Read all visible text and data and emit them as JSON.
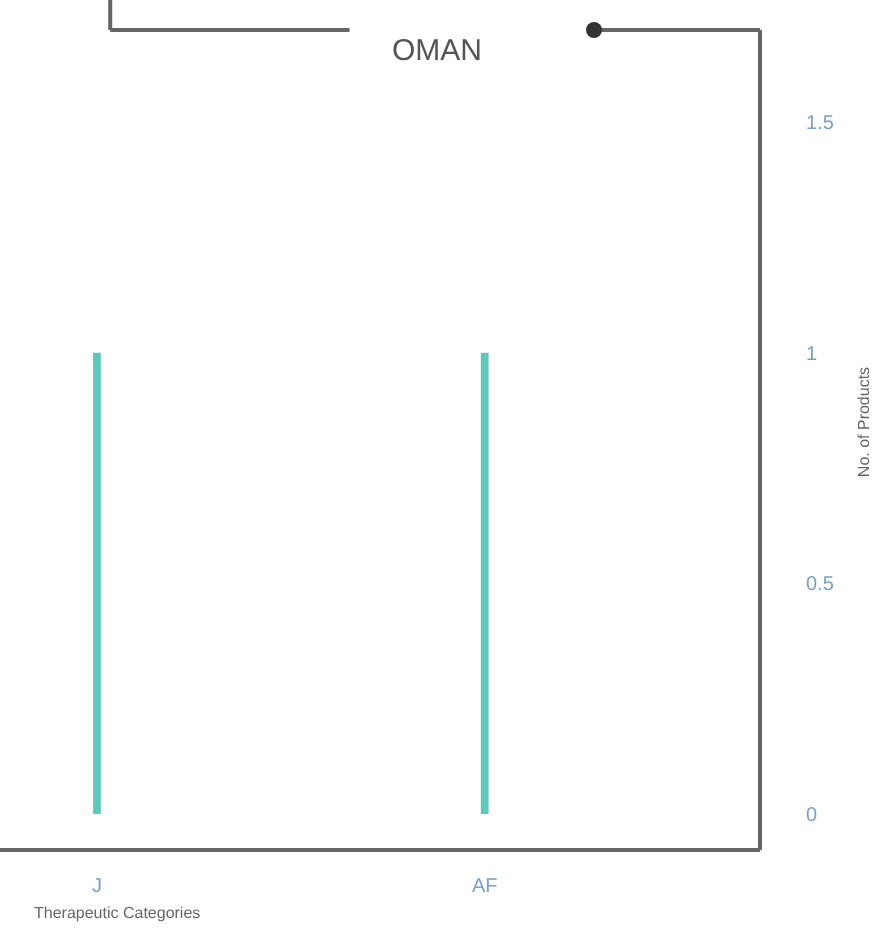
{
  "chart_data": {
    "type": "bar",
    "title": "OMAN",
    "xlabel": "Therapeutic Categories",
    "ylabel": "No. of Products",
    "categories": [
      "J",
      "AF"
    ],
    "values": [
      1,
      1
    ],
    "color": "#5cc9bd",
    "ylim": [
      0,
      1.7
    ],
    "yticks": [
      0,
      0.5,
      1,
      1.5
    ],
    "grid": false,
    "legend": false
  }
}
